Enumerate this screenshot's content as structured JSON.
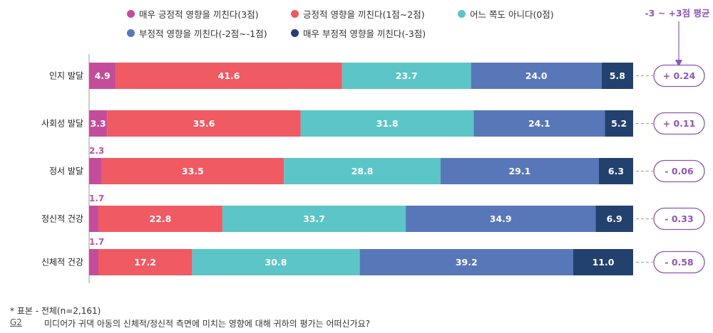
{
  "chart_data": {
    "type": "bar",
    "orientation": "horizontal-stacked-100",
    "categories": [
      "인지 발달",
      "사회성 발달",
      "정서 발달",
      "정신적 건강",
      "신체적 건강"
    ],
    "series": [
      {
        "name": "매우 긍정적 영향을 끼친다(3점)",
        "color": "#c44d9b",
        "values": [
          4.9,
          3.3,
          2.3,
          1.7,
          1.7
        ]
      },
      {
        "name": "긍정적 영향을 끼친다(1점~2점)",
        "color": "#ef5a63",
        "values": [
          41.6,
          35.6,
          33.5,
          22.8,
          17.2
        ]
      },
      {
        "name": "어느 쪽도 아니다(0점)",
        "color": "#5cc5c8",
        "values": [
          23.7,
          31.8,
          28.8,
          33.7,
          30.8
        ]
      },
      {
        "name": "부정적 영향을 끼친다(-2점~-1점)",
        "color": "#5777b8",
        "values": [
          24.0,
          24.1,
          29.1,
          34.9,
          39.2
        ]
      },
      {
        "name": "매우 부정적 영향을 끼친다(-3점)",
        "color": "#23416e",
        "values": [
          5.8,
          5.2,
          6.3,
          6.9,
          11.0
        ]
      }
    ],
    "averages_title": "-3 ~ +3점 평균",
    "averages": [
      "+ 0.24",
      "+ 0.11",
      "- 0.06",
      "- 0.33",
      "- 0.58"
    ],
    "legend_position": "top",
    "xlim": [
      0,
      100
    ],
    "grid": false
  },
  "notes": {
    "sample": "* 표본 - 전체(n=2,161)",
    "question_id": "G2",
    "question": "미디어가 귀댁 아동의 신체적/정신적 측면에 미치는 영향에 대해 귀하의 평가는 어떠신가요?"
  },
  "colors": {
    "accent": "#8e55b5"
  }
}
